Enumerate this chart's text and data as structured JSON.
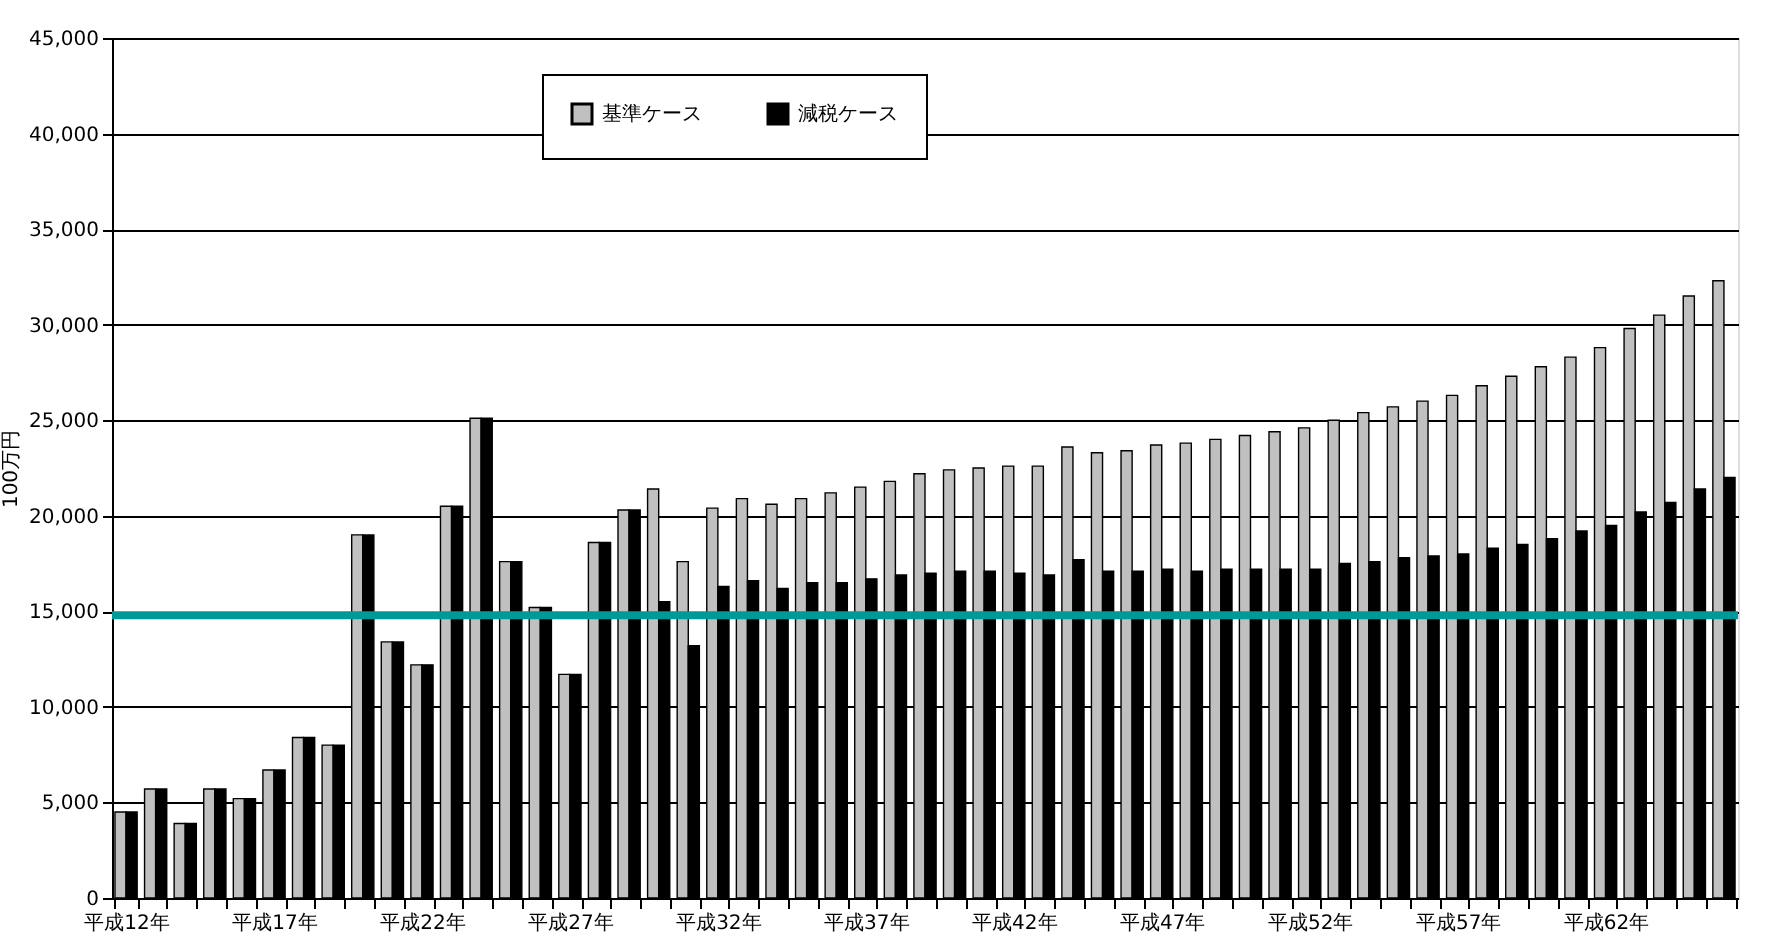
{
  "chart_data": {
    "type": "bar",
    "ylabel": "100万円",
    "categories": [
      "平成12年",
      null,
      null,
      null,
      null,
      "平成17年",
      null,
      null,
      null,
      null,
      "平成22年",
      null,
      null,
      null,
      null,
      "平成27年",
      null,
      null,
      null,
      null,
      "平成32年",
      null,
      null,
      null,
      null,
      "平成37年",
      null,
      null,
      null,
      null,
      "平成42年",
      null,
      null,
      null,
      null,
      "平成47年",
      null,
      null,
      null,
      null,
      "平成52年",
      null,
      null,
      null,
      null,
      "平成57年",
      null,
      null,
      null,
      null,
      "平成62年",
      null,
      null,
      null,
      null
    ],
    "series": [
      {
        "name": "基準ケース",
        "color": "#c0c0c0",
        "values": [
          4500,
          5700,
          3900,
          5700,
          5200,
          6700,
          8400,
          8000,
          19000,
          13400,
          12200,
          20500,
          25100,
          17600,
          15200,
          11700,
          18600,
          20300,
          21400,
          17600,
          20400,
          20900,
          20600,
          20900,
          21200,
          21500,
          21800,
          22200,
          22400,
          22500,
          22600,
          22600,
          23600,
          23300,
          23400,
          23700,
          23800,
          24000,
          24200,
          24400,
          24600,
          25000,
          25400,
          25700,
          26000,
          26300,
          26800,
          27300,
          27800,
          28300,
          28800,
          29800,
          30500,
          31500,
          32300
        ]
      },
      {
        "name": "減税ケース",
        "color": "#000000",
        "values": [
          4500,
          5700,
          3900,
          5700,
          5200,
          6700,
          8400,
          8000,
          19000,
          13400,
          12200,
          20500,
          25100,
          17600,
          15200,
          11700,
          18600,
          20300,
          15500,
          13200,
          16300,
          16600,
          16200,
          16500,
          16500,
          16700,
          16900,
          17000,
          17100,
          17100,
          17000,
          16900,
          17700,
          17100,
          17100,
          17200,
          17100,
          17200,
          17200,
          17200,
          17200,
          17500,
          17600,
          17800,
          17900,
          18000,
          18300,
          18500,
          18800,
          19200,
          19500,
          20200,
          20700,
          21400,
          22000
        ]
      }
    ],
    "ylim": [
      0,
      45000
    ],
    "yticks": [
      0,
      {
        "value": 5000,
        "label": "5,000"
      },
      {
        "value": 10000,
        "label": "10,000"
      },
      {
        "value": 15000,
        "label": "15,000"
      },
      {
        "value": 20000,
        "label": "20,000"
      },
      {
        "value": 25000,
        "label": "25,000"
      },
      {
        "value": 30000,
        "label": "30,000"
      },
      {
        "value": 35000,
        "label": "35,000"
      },
      {
        "value": 40000,
        "label": "40,000"
      },
      {
        "value": 45000,
        "label": "45,000"
      }
    ],
    "grid": "y",
    "legend": "top",
    "ref_lines": [
      {
        "axis": "y",
        "value": 14800,
        "color": "#009999"
      }
    ]
  }
}
